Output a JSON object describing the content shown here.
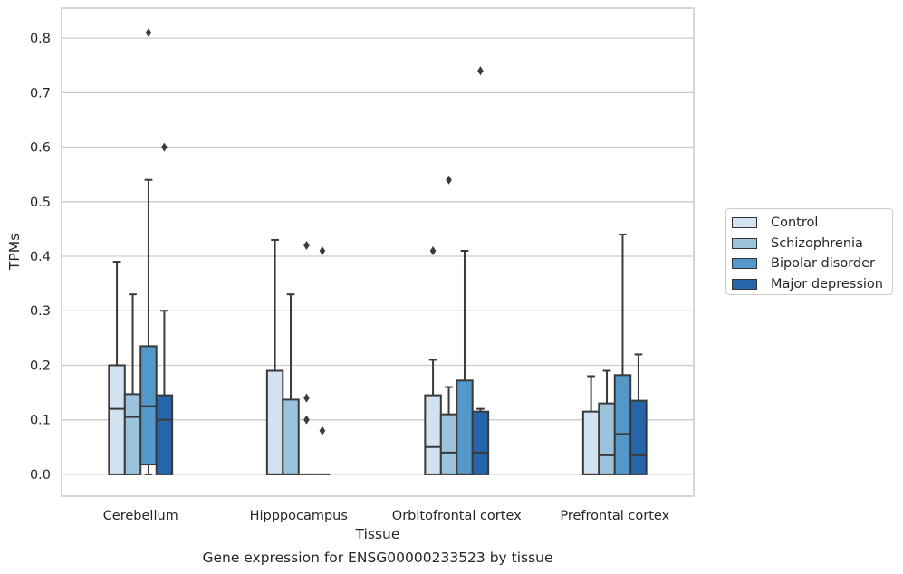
{
  "chart_data": {
    "type": "box",
    "ylabel": "TPMs",
    "xlabel": "Tissue",
    "caption": "Gene expression for ENSG00000233523 by tissue",
    "ylim": [
      -0.04,
      0.855
    ],
    "yticks": [
      0.0,
      0.1,
      0.2,
      0.3,
      0.4,
      0.5,
      0.6,
      0.7,
      0.8
    ],
    "ytick_labels": [
      "0.0",
      "0.1",
      "0.2",
      "0.3",
      "0.4",
      "0.5",
      "0.6",
      "0.7",
      "0.8"
    ],
    "grid": true,
    "legend_position": "right",
    "categories": [
      "Cerebellum",
      "Hipppocampus",
      "Orbitofrontal cortex",
      "Prefrontal cortex"
    ],
    "series": [
      {
        "name": "Control",
        "color": "#d3e2f0",
        "boxes": [
          {
            "min": 0.0,
            "q1": 0.0,
            "median": 0.12,
            "q3": 0.2,
            "max": 0.39,
            "outliers": []
          },
          {
            "min": 0.0,
            "q1": 0.0,
            "median": 0.0,
            "q3": 0.19,
            "max": 0.43,
            "outliers": []
          },
          {
            "min": 0.0,
            "q1": 0.0,
            "median": 0.05,
            "q3": 0.145,
            "max": 0.21,
            "outliers": [
              0.41
            ]
          },
          {
            "min": 0.0,
            "q1": 0.0,
            "median": 0.0,
            "q3": 0.115,
            "max": 0.18,
            "outliers": []
          }
        ]
      },
      {
        "name": "Schizophrenia",
        "color": "#9bc3dc",
        "boxes": [
          {
            "min": 0.0,
            "q1": 0.0,
            "median": 0.105,
            "q3": 0.147,
            "max": 0.33,
            "outliers": []
          },
          {
            "min": 0.0,
            "q1": 0.0,
            "median": 0.0,
            "q3": 0.137,
            "max": 0.33,
            "outliers": []
          },
          {
            "min": 0.0,
            "q1": 0.0,
            "median": 0.04,
            "q3": 0.11,
            "max": 0.16,
            "outliers": [
              0.54
            ]
          },
          {
            "min": 0.0,
            "q1": 0.0,
            "median": 0.035,
            "q3": 0.13,
            "max": 0.19,
            "outliers": []
          }
        ]
      },
      {
        "name": "Bipolar disorder",
        "color": "#5398c8",
        "boxes": [
          {
            "min": 0.0,
            "q1": 0.018,
            "median": 0.125,
            "q3": 0.235,
            "max": 0.54,
            "outliers": [
              0.81
            ]
          },
          {
            "min": 0.0,
            "q1": 0.0,
            "median": 0.0,
            "q3": 0.0,
            "max": 0.0,
            "outliers": [
              0.42,
              0.14,
              0.1
            ]
          },
          {
            "min": 0.0,
            "q1": 0.0,
            "median": 0.0,
            "q3": 0.172,
            "max": 0.41,
            "outliers": []
          },
          {
            "min": 0.0,
            "q1": 0.0,
            "median": 0.074,
            "q3": 0.182,
            "max": 0.44,
            "outliers": []
          }
        ]
      },
      {
        "name": "Major depression",
        "color": "#2565a8",
        "boxes": [
          {
            "min": 0.0,
            "q1": 0.0,
            "median": 0.1,
            "q3": 0.145,
            "max": 0.3,
            "outliers": [
              0.6
            ]
          },
          {
            "min": 0.0,
            "q1": 0.0,
            "median": 0.0,
            "q3": 0.0,
            "max": 0.0,
            "outliers": [
              0.41,
              0.08
            ]
          },
          {
            "min": 0.0,
            "q1": 0.0,
            "median": 0.04,
            "q3": 0.115,
            "max": 0.12,
            "outliers": [
              0.74
            ]
          },
          {
            "min": 0.0,
            "q1": 0.0,
            "median": 0.035,
            "q3": 0.135,
            "max": 0.22,
            "outliers": []
          }
        ]
      }
    ]
  }
}
